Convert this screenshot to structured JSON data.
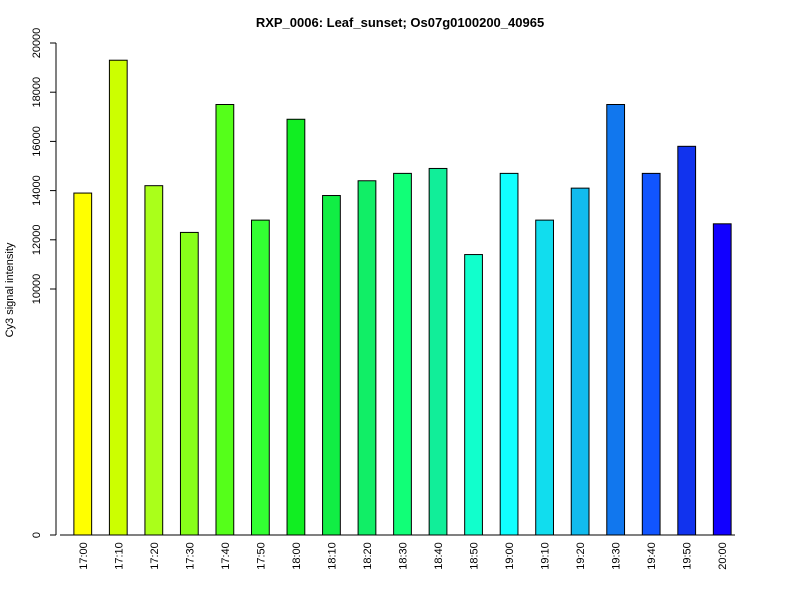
{
  "chart_data": {
    "type": "bar",
    "title": "RXP_0006: Leaf_sunset; Os07g0100200_40965",
    "xlabel": "",
    "ylabel": "Cy3 signal intensity",
    "ylim": [
      0,
      20000
    ],
    "yticks": [
      "0",
      "10000",
      "12000",
      "14000",
      "16000",
      "18000",
      "20000"
    ],
    "categories": [
      "17:00",
      "17:10",
      "17:20",
      "17:30",
      "17:40",
      "17:50",
      "18:00",
      "18:10",
      "18:20",
      "18:30",
      "18:40",
      "18:50",
      "19:00",
      "19:10",
      "19:20",
      "19:30",
      "19:40",
      "19:50",
      "20:00"
    ],
    "values": [
      13900,
      19300,
      14200,
      12300,
      17500,
      12800,
      16900,
      13800,
      14400,
      14700,
      14900,
      11400,
      14700,
      12800,
      14100,
      17500,
      14700,
      15800,
      12650
    ],
    "colors": [
      "#ffff00",
      "#ccff00",
      "#aaff1a",
      "#88ff1a",
      "#55ff1a",
      "#33ff33",
      "#11ee22",
      "#11ee44",
      "#11ee66",
      "#11ff77",
      "#11ee99",
      "#11ffcc",
      "#11ffff",
      "#11ddee",
      "#11bbee",
      "#1177ee",
      "#1155ff",
      "#1133ee",
      "#1100ff"
    ],
    "grid": false,
    "legend": "none"
  }
}
